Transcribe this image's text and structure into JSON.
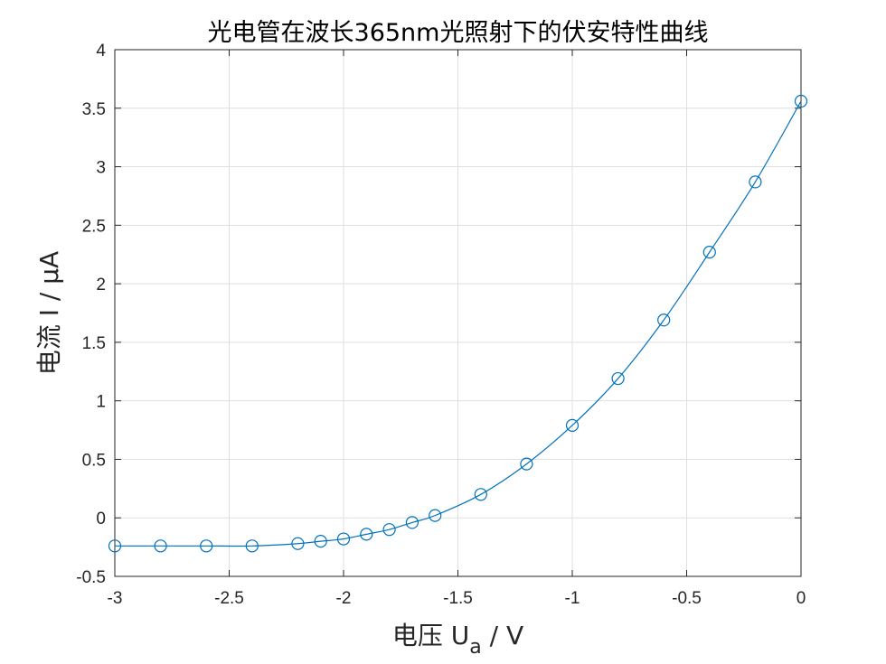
{
  "chart_data": {
    "type": "line",
    "title": "光电管在波长365nm光照射下的伏安特性曲线",
    "xlabel": {
      "main": "电压 U",
      "sub": "a",
      "tail": " / V"
    },
    "ylabel": "电流 I / μA",
    "xlim": [
      -3,
      0
    ],
    "ylim": [
      -0.5,
      4
    ],
    "xticks": [
      -3,
      -2.5,
      -2,
      -1.5,
      -1,
      -0.5,
      0
    ],
    "xtick_labels": [
      "-3",
      "-2.5",
      "-2",
      "-1.5",
      "-1",
      "-0.5",
      "0"
    ],
    "yticks": [
      -0.5,
      0,
      0.5,
      1,
      1.5,
      2,
      2.5,
      3,
      3.5,
      4
    ],
    "ytick_labels": [
      "-0.5",
      "0",
      "0.5",
      "1",
      "1.5",
      "2",
      "2.5",
      "3",
      "3.5",
      "4"
    ],
    "grid": true,
    "series": [
      {
        "marker": "circle",
        "color": "#0072BD",
        "x": [
          -3.0,
          -2.8,
          -2.6,
          -2.4,
          -2.2,
          -2.1,
          -2.0,
          -1.9,
          -1.8,
          -1.7,
          -1.6,
          -1.4,
          -1.2,
          -1.0,
          -0.8,
          -0.6,
          -0.4,
          -0.2,
          0.0
        ],
        "y": [
          -0.24,
          -0.24,
          -0.24,
          -0.24,
          -0.22,
          -0.2,
          -0.18,
          -0.14,
          -0.1,
          -0.04,
          0.02,
          0.2,
          0.46,
          0.79,
          1.19,
          1.69,
          2.27,
          2.87,
          3.56
        ]
      }
    ]
  }
}
